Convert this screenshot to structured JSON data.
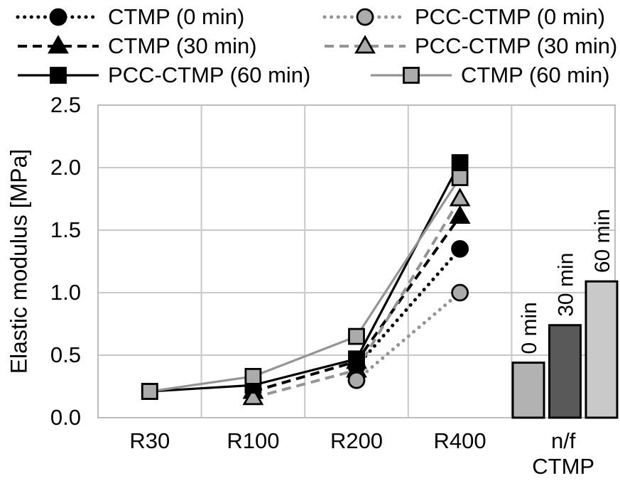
{
  "colors": {
    "black": "#000000",
    "gray_line": "#949494",
    "gray_marker_fill": "#ababab",
    "grid": "#c8c8c8",
    "border": "#bdbdbd",
    "bar_0min": "#b2b2b2",
    "bar_30min": "#595959",
    "bar_60min": "#c9c9c9"
  },
  "legend": {
    "items": [
      {
        "label": "CTMP (0 min)",
        "color": "black",
        "line": "dotted",
        "marker": "circle"
      },
      {
        "label": "PCC-CTMP (0 min)",
        "color": "gray",
        "line": "dotted",
        "marker": "circle"
      },
      {
        "label": "CTMP (30 min)",
        "color": "black",
        "line": "dashed",
        "marker": "triangle"
      },
      {
        "label": "PCC-CTMP (30 min)",
        "color": "gray",
        "line": "dashed",
        "marker": "triangle"
      },
      {
        "label": "PCC-CTMP (60 min)",
        "color": "black",
        "line": "solid",
        "marker": "square"
      },
      {
        "label": "CTMP (60 min)",
        "color": "gray",
        "line": "solid",
        "marker": "square"
      }
    ]
  },
  "chart_data": {
    "type": "line",
    "title": "",
    "xlabel": "",
    "ylabel": "Elastic modulus [MPa]",
    "ylim": [
      0,
      2.5
    ],
    "yticks": [
      "0.0",
      "0.5",
      "1.0",
      "1.5",
      "2.0",
      "2.5"
    ],
    "ytick_values": [
      0,
      0.5,
      1.0,
      1.5,
      2.0,
      2.5
    ],
    "grid": true,
    "legend_position": "top",
    "categories": [
      "R30",
      "R100",
      "R200",
      "R400",
      "n/f CTMP"
    ],
    "xtick_labels": [
      "R30",
      "R100",
      "R200",
      "R400",
      "n/f\nCTMP"
    ],
    "series": [
      {
        "name": "CTMP (0 min)",
        "style": "dotted",
        "marker": "circle",
        "color": "black",
        "values": [
          null,
          null,
          0.41,
          1.35,
          null
        ]
      },
      {
        "name": "CTMP (30 min)",
        "style": "dashed",
        "marker": "triangle",
        "color": "black",
        "values": [
          null,
          0.21,
          0.45,
          1.61,
          null
        ]
      },
      {
        "name": "PCC-CTMP (60 min)",
        "style": "solid",
        "marker": "square",
        "color": "black",
        "values": [
          0.21,
          0.26,
          0.47,
          2.04,
          null
        ]
      },
      {
        "name": "PCC-CTMP (0 min)",
        "style": "dotted",
        "marker": "circle",
        "color": "gray",
        "values": [
          null,
          null,
          0.3,
          1.0,
          null
        ]
      },
      {
        "name": "PCC-CTMP (30 min)",
        "style": "dashed",
        "marker": "triangle",
        "color": "gray",
        "values": [
          null,
          0.16,
          0.38,
          1.75,
          null
        ]
      },
      {
        "name": "CTMP (60 min)",
        "style": "solid",
        "marker": "square",
        "color": "gray",
        "values": [
          0.21,
          0.33,
          0.65,
          1.92,
          null
        ]
      }
    ],
    "bars": {
      "category": "n/f CTMP",
      "items": [
        {
          "label": "0 min",
          "value": 0.44,
          "color_key": "bar_0min"
        },
        {
          "label": "30 min",
          "value": 0.74,
          "color_key": "bar_30min"
        },
        {
          "label": "60 min",
          "value": 1.09,
          "color_key": "bar_60min"
        }
      ]
    }
  }
}
